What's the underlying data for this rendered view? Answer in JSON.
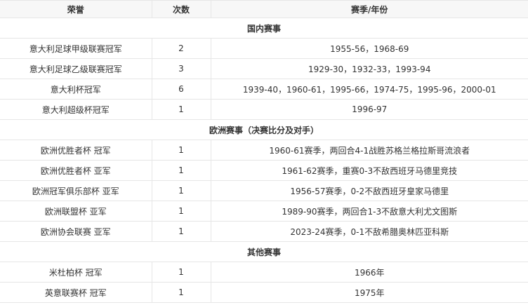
{
  "headers": [
    "荣誉",
    "次数",
    "赛季/年份"
  ],
  "sections": [
    {
      "title": "国内赛事",
      "rows": [
        [
          "意大利足球甲级联赛冠军",
          "2",
          "1955-56，1968-69"
        ],
        [
          "意大利足球乙级联赛冠军",
          "3",
          "1929-30，1932-33，1993-94"
        ],
        [
          "意大利杯冠军",
          "6",
          "1939-40，1960-61，1995-66，1974-75，1995-96，2000-01"
        ],
        [
          "意大利超级杯冠军",
          "1",
          "1996-97"
        ]
      ]
    },
    {
      "title": "欧洲赛事（决赛比分及对手）",
      "rows": [
        [
          "欧洲优胜者杯 冠军",
          "1",
          "1960-61赛季，两回合4-1战胜苏格兰格拉斯哥流浪者"
        ],
        [
          "欧洲优胜者杯 亚军",
          "1",
          "1961-62赛季，重赛0-3不敌西班牙马德里竞技"
        ],
        [
          "欧洲冠军俱乐部杯 亚军",
          "1",
          "1956-57赛季，0-2不敌西班牙皇家马德里"
        ],
        [
          "欧洲联盟杯 亚军",
          "1",
          "1989-90赛季，两回合1-3不敌意大利尤文图斯"
        ],
        [
          "欧洲协会联赛 亚军",
          "1",
          "2023-24赛季，0-1不敌希腊奥林匹亚科斯"
        ]
      ]
    },
    {
      "title": "其他赛事",
      "rows": [
        [
          "米杜柏杯 冠军",
          "1",
          "1966年"
        ],
        [
          "英意联赛杯 冠军",
          "1",
          "1975年"
        ]
      ]
    }
  ]
}
